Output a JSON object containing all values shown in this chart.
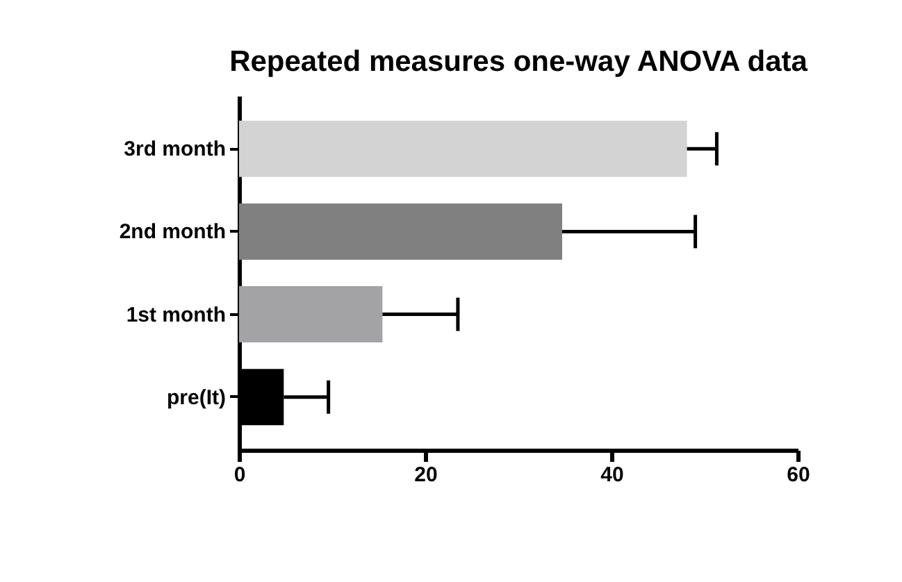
{
  "chart_data": {
    "type": "bar",
    "orientation": "horizontal",
    "title": "Repeated measures one-way ANOVA data",
    "categories": [
      "3rd month",
      "2nd month",
      "1st month",
      "pre(It)"
    ],
    "values": [
      48.1,
      34.7,
      15.4,
      4.8
    ],
    "colors": [
      "#d3d3d3",
      "#808080",
      "#a3a3a6",
      "#000000"
    ],
    "errors": [
      [
        48.1,
        51.3
      ],
      [
        34.7,
        49.0
      ],
      [
        15.4,
        23.5
      ],
      [
        4.8,
        9.6
      ]
    ],
    "xlim": [
      0,
      60
    ],
    "xticks": [
      0,
      20,
      40,
      60
    ],
    "grid": false
  }
}
